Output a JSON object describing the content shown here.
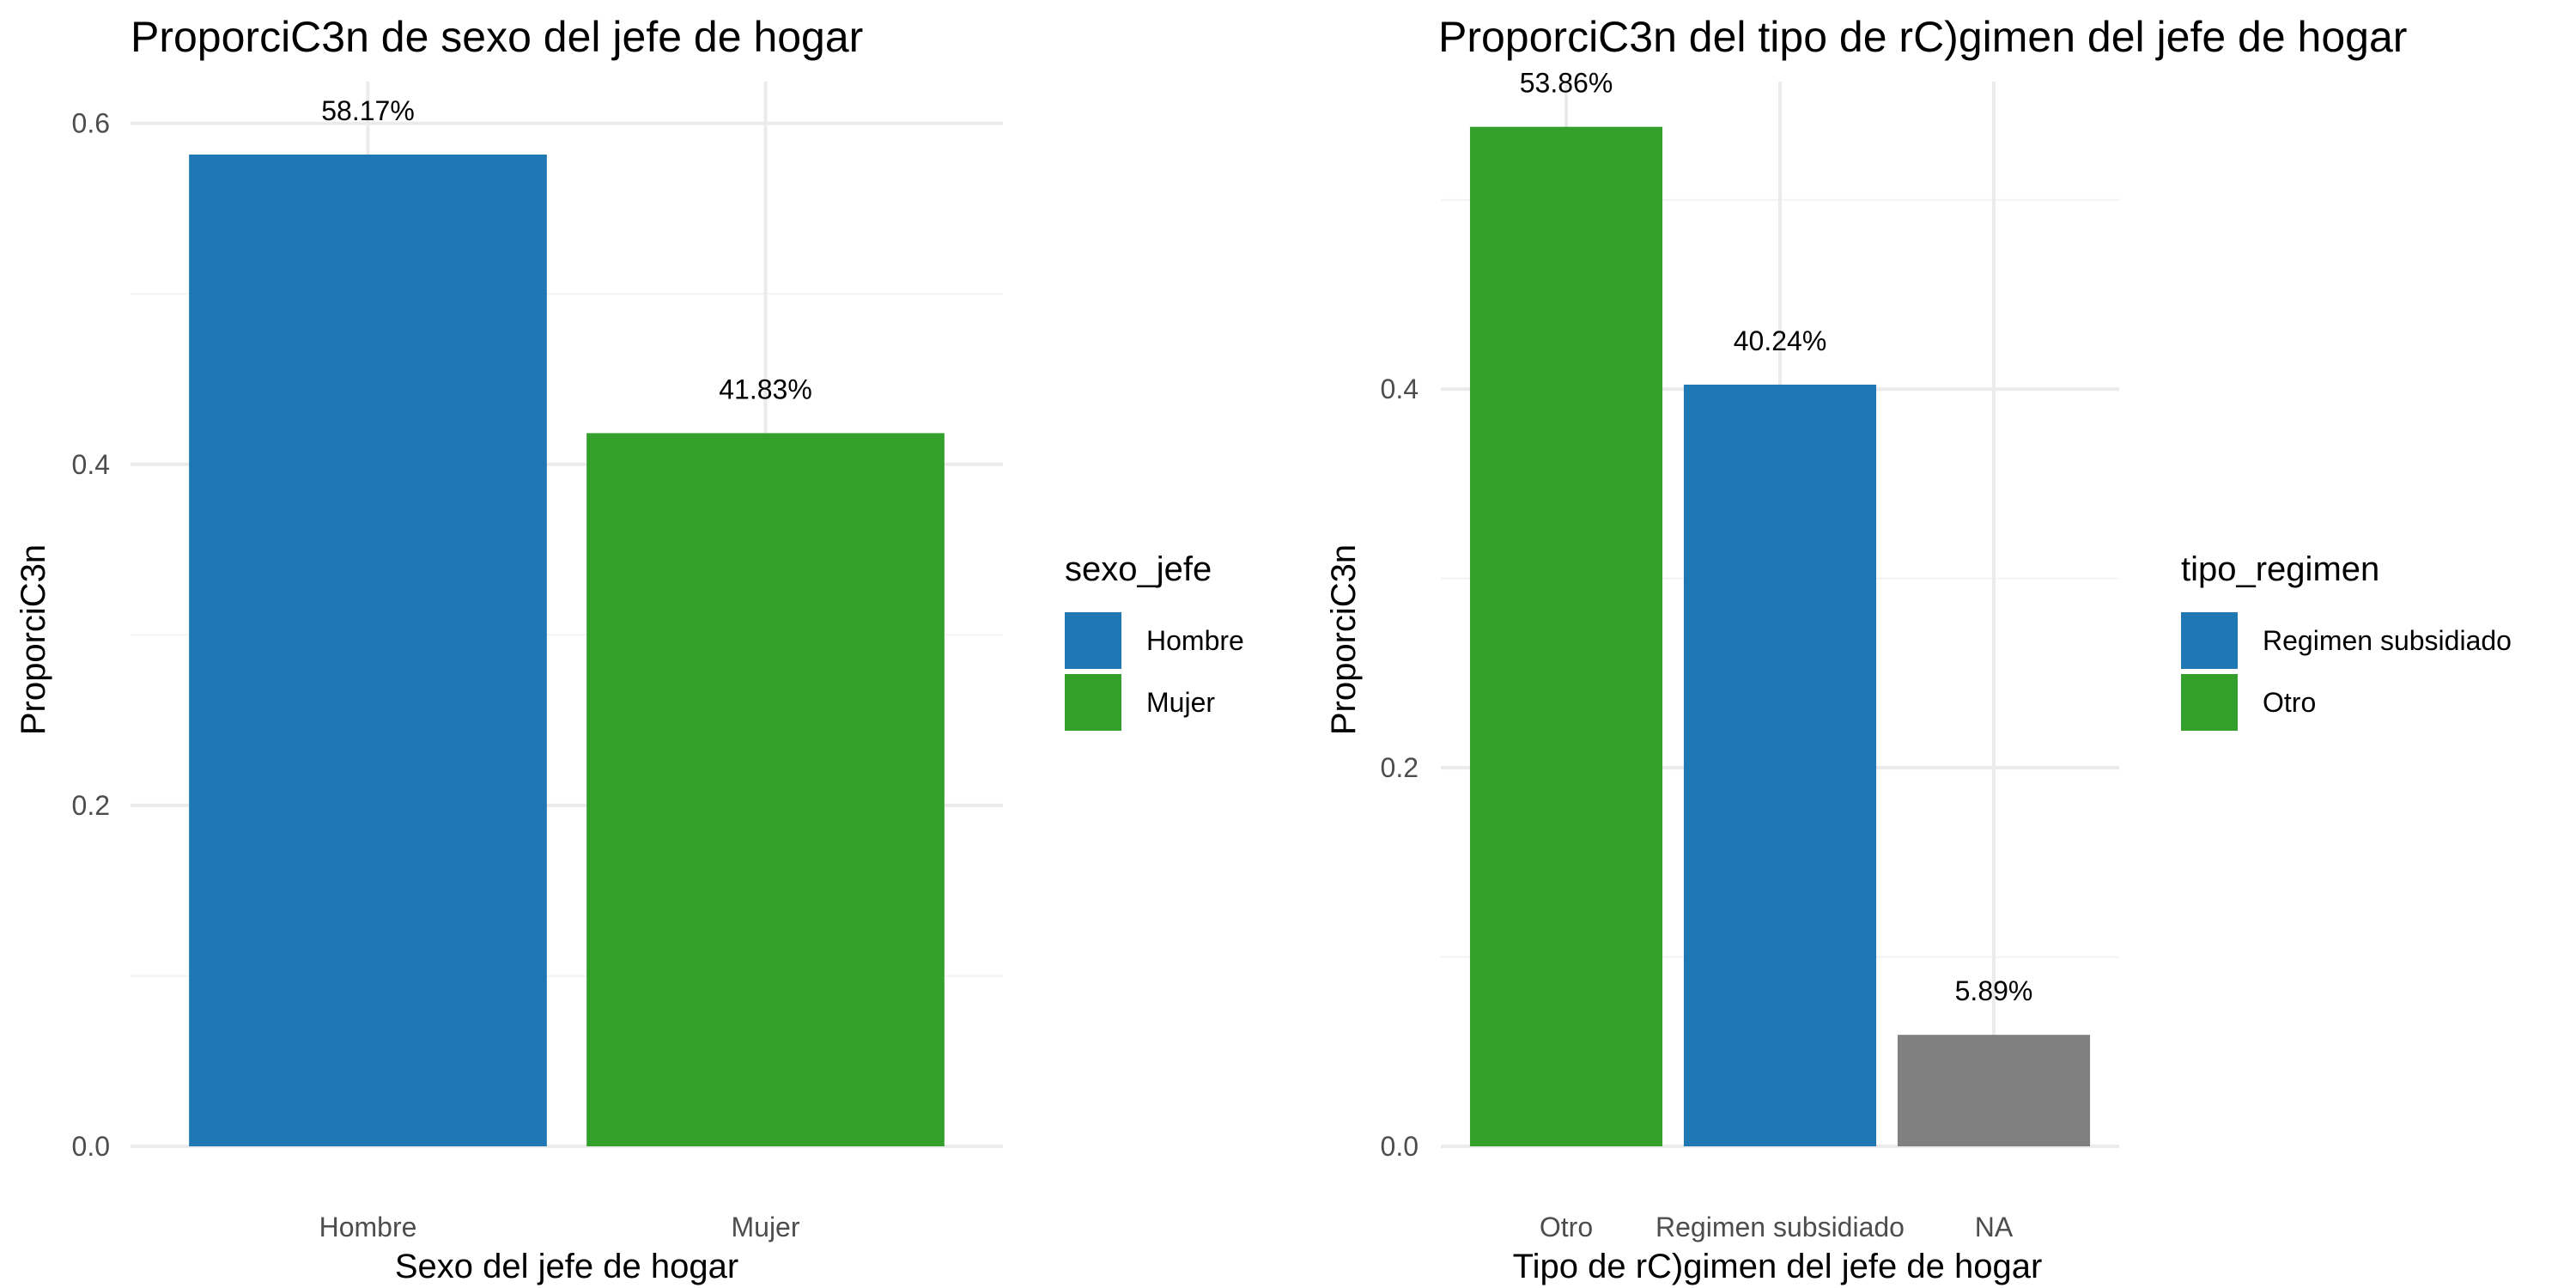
{
  "chart_data": [
    {
      "type": "bar",
      "title": "ProporciC3n de sexo del jefe de hogar",
      "xlabel": "Sexo del jefe de hogar",
      "ylabel": "ProporciC3n",
      "categories": [
        "Hombre",
        "Mujer"
      ],
      "values": [
        0.5817,
        0.4183
      ],
      "data_labels": [
        "58.17%",
        "41.83%"
      ],
      "bar_colors": [
        "#1f77b4",
        "#33a02c"
      ],
      "ylim": [
        0,
        0.6
      ],
      "yticks": [
        0.0,
        0.2,
        0.4,
        0.6
      ],
      "ytick_labels": [
        "0.0",
        "0.2",
        "0.4",
        "0.6"
      ],
      "grid": true,
      "legend": {
        "title": "sexo_jefe",
        "position": "right",
        "entries": [
          {
            "label": "Hombre",
            "color": "#1f77b4"
          },
          {
            "label": "Mujer",
            "color": "#33a02c"
          }
        ]
      }
    },
    {
      "type": "bar",
      "title": "ProporciC3n del tipo de rC)gimen del jefe de hogar",
      "xlabel": "Tipo de rC)gimen del jefe de hogar",
      "ylabel": "ProporciC3n",
      "categories": [
        "Otro",
        "Regimen subsidiado",
        "NA"
      ],
      "values": [
        0.5386,
        0.4024,
        0.0589
      ],
      "data_labels": [
        "53.86%",
        "40.24%",
        "5.89%"
      ],
      "bar_colors": [
        "#33a02c",
        "#1f77b4",
        "#808080"
      ],
      "ylim": [
        0,
        0.5
      ],
      "yticks": [
        0.0,
        0.2,
        0.4
      ],
      "ytick_labels": [
        "0.0",
        "0.2",
        "0.4"
      ],
      "grid": true,
      "legend": {
        "title": "tipo_regimen",
        "position": "right",
        "entries": [
          {
            "label": "Regimen subsidiado",
            "color": "#1f77b4"
          },
          {
            "label": "Otro",
            "color": "#33a02c"
          }
        ]
      }
    }
  ]
}
